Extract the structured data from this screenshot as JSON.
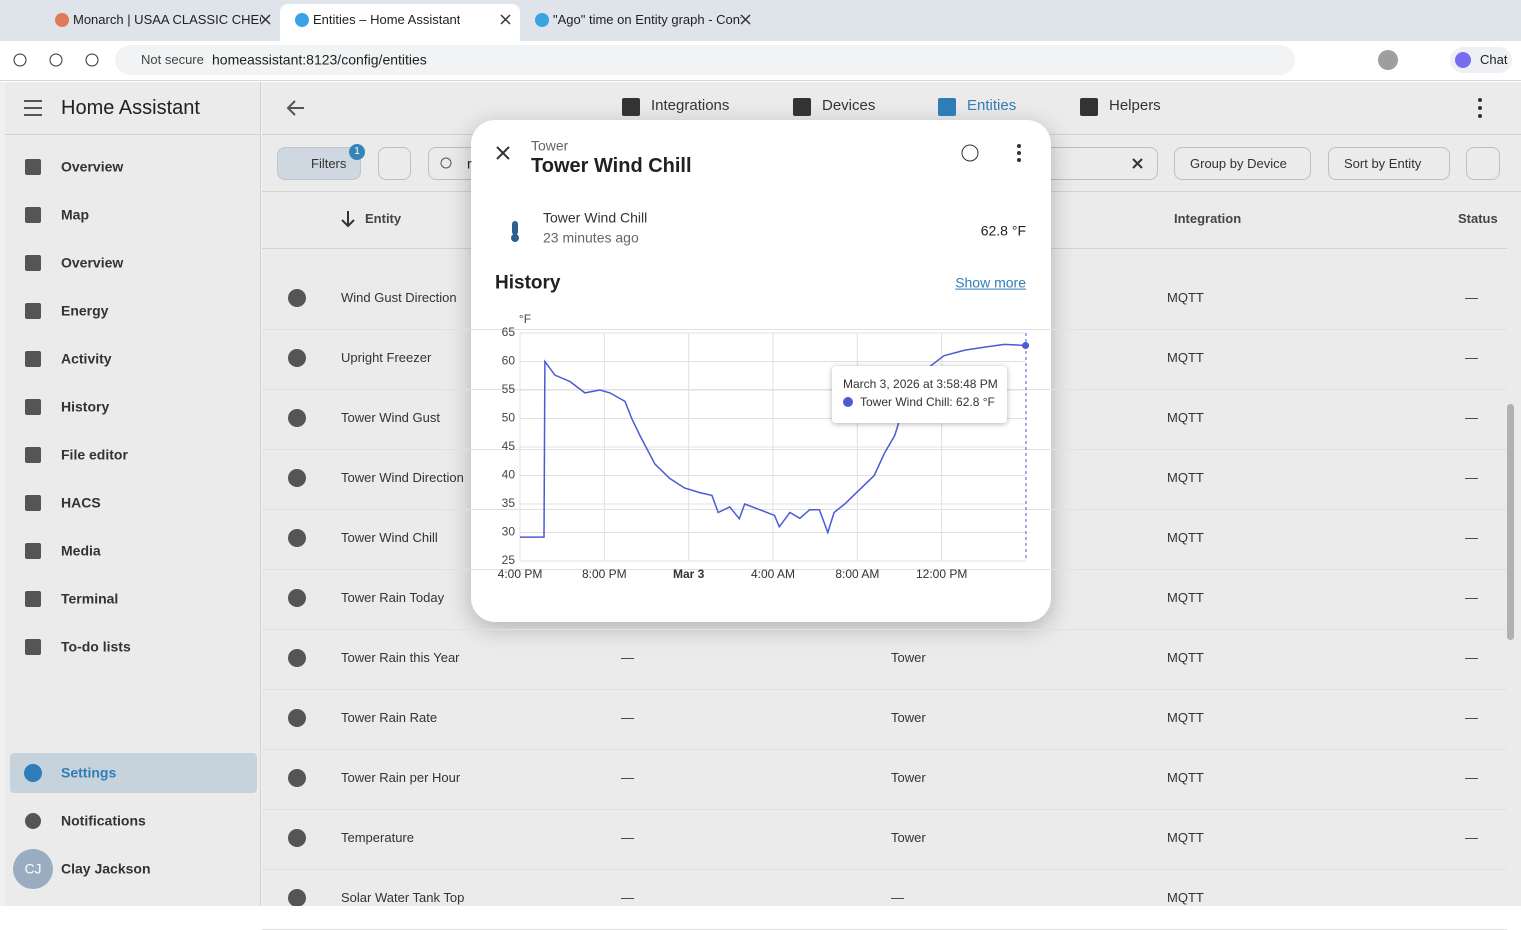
{
  "browser": {
    "tabs": [
      "Monarch | USAA CLASSIC CHECKIN",
      "Entities – Home Assistant",
      "\"Ago\" time on Entity graph - Confi"
    ],
    "security": "Not secure",
    "url": "homeassistant:8123/config/entities",
    "chat": "Chat"
  },
  "sidebar": {
    "title": "Home Assistant",
    "items": [
      "Overview",
      "Map",
      "Overview",
      "Energy",
      "Activity",
      "History",
      "File editor",
      "HACS",
      "Media",
      "Terminal",
      "To-do lists"
    ],
    "settings": "Settings",
    "notifications": "Notifications",
    "user_initials": "CJ",
    "user_name": "Clay Jackson"
  },
  "toolbar": {
    "tabs": [
      "Integrations",
      "Devices",
      "Entities",
      "Helpers"
    ]
  },
  "filters": {
    "button": "Filters",
    "badge": "1",
    "search": "r",
    "group_by": "Group by Device",
    "sort_by": "Sort by Entity"
  },
  "table": {
    "headers": {
      "entity": "Entity",
      "integration": "Integration",
      "status": "Status"
    },
    "rows": [
      {
        "name": "Wind Gust Direction",
        "integration": "MQTT",
        "status": "—"
      },
      {
        "name": "Upright Freezer",
        "integration": "MQTT",
        "status": "—"
      },
      {
        "name": "Tower Wind Gust",
        "integration": "MQTT",
        "status": "—"
      },
      {
        "name": "Tower Wind Direction",
        "integration": "MQTT",
        "status": "—"
      },
      {
        "name": "Tower Wind Chill",
        "integration": "MQTT",
        "status": "—"
      },
      {
        "name": "Tower Rain Today",
        "integration": "MQTT",
        "status": "—"
      },
      {
        "name": "Tower Rain this Year",
        "device": "—",
        "area": "Tower",
        "integration": "MQTT",
        "status": "—"
      },
      {
        "name": "Tower Rain Rate",
        "device": "—",
        "area": "Tower",
        "integration": "MQTT",
        "status": "—"
      },
      {
        "name": "Tower Rain per Hour",
        "device": "—",
        "area": "Tower",
        "integration": "MQTT",
        "status": "—"
      },
      {
        "name": "Temperature",
        "device": "—",
        "area": "Tower",
        "integration": "MQTT",
        "status": "—"
      },
      {
        "name": "Solar Water Tank Top",
        "device": "—",
        "area": "—",
        "integration": "MQTT"
      }
    ]
  },
  "dialog": {
    "breadcrumb": "Tower",
    "title": "Tower Wind Chill",
    "entity_name": "Tower Wind Chill",
    "last_changed": "23 minutes ago",
    "state": "62.8 °F",
    "history": "History",
    "show_more": "Show more"
  },
  "chart_data": {
    "type": "line",
    "y_label": "°F",
    "x": [
      16,
      17.14,
      17.18,
      17.66,
      18.37,
      19.08,
      19.79,
      20.27,
      20.98,
      21.3,
      21.69,
      22.4,
      23.1,
      23.8,
      24.53,
      25.1,
      25.4,
      25.95,
      26.4,
      26.66,
      27.37,
      28.07,
      28.3,
      28.8,
      29.27,
      29.74,
      30.2,
      30.6,
      30.9,
      31.4,
      32.1,
      32.8,
      33.3,
      33.77,
      34.0,
      34.5,
      35.4,
      36.1,
      37.1,
      38.0,
      38.97,
      39.98
    ],
    "series": [
      {
        "name": "Tower Wind Chill",
        "color": "#4a5bd4",
        "values": [
          29.2,
          29.2,
          60,
          57.6,
          56.5,
          54.5,
          55,
          54.5,
          53,
          50,
          47,
          42,
          39.5,
          37.8,
          37,
          36.5,
          33.5,
          34.5,
          32.4,
          35,
          34,
          33,
          31,
          33.5,
          32.5,
          34,
          34,
          30,
          33.5,
          35,
          37.5,
          40,
          44,
          47,
          49.7,
          53,
          59,
          61,
          62,
          62.5,
          63,
          62.8
        ]
      }
    ],
    "xlim": [
      16,
      40
    ],
    "xticks": [
      {
        "value": 16,
        "label": "4:00 PM"
      },
      {
        "value": 20,
        "label": "8:00 PM"
      },
      {
        "value": 24,
        "label": "Mar 3"
      },
      {
        "value": 28,
        "label": "4:00 AM"
      },
      {
        "value": 32,
        "label": "8:00 AM"
      },
      {
        "value": 36,
        "label": "12:00 PM"
      }
    ],
    "ylim": [
      25,
      65
    ],
    "yticks": [
      25,
      30,
      35,
      40,
      45,
      50,
      55,
      60,
      65
    ],
    "grid": true,
    "tooltip": {
      "title": "March 3, 2026 at 3:58:48 PM",
      "text": "Tower Wind Chill: 62.8 °F"
    }
  }
}
